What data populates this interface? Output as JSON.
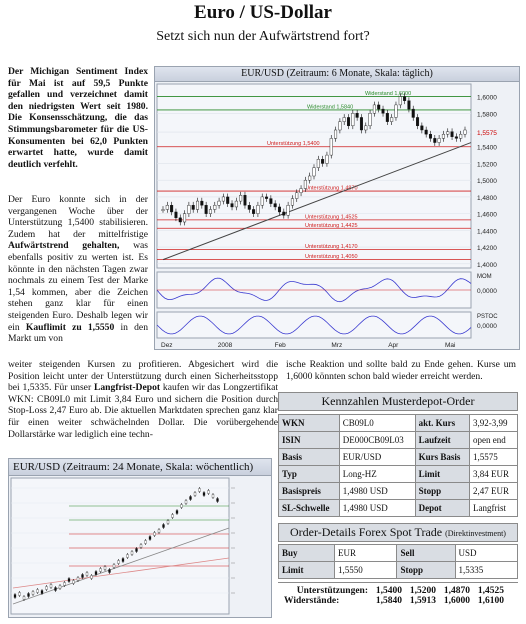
{
  "header": {
    "title": "Euro / US-Dollar",
    "subtitle": "Setzt sich nun der Aufwärtstrend fort?"
  },
  "intro": "Der Michigan Sentiment Index für Mai ist auf 59,5 Punkte gefallen und verzeichnet damit den niedrigsten Wert seit 1980. Die Konsensschätzung, die das Stimmungsbarometer für die US-Konsumenten bei 62,0 Punkten erwartet hatte, wurde damit deutlich verfehlt.",
  "body": {
    "p1_a": "Der Euro konnte sich in der vergangenen Woche über der Unterstützung 1,5400 stabilisieren. Zudem hat der mittelfristige ",
    "p1_b": "Aufwärtstrend gehalten,",
    "p1_c": " was ebenfalls positiv zu werten ist. Es könnte in den nächsten Tagen zwar nochmals zu einem Test der Marke 1,54 kommen, aber die Zeichen stehen ganz klar für einen steigenden Euro. Deshalb legen wir ein ",
    "p1_d": "Kauflimit zu 1,5550",
    "p1_e": " in den Markt um von",
    "p2_a": "weiter steigenden Kursen zu profitieren. Abgesichert wird die Position leicht unter der Unterstützung durch einen Sicherheitsstopp bei 1,5335. Für unser ",
    "p2_b": "Langfrist-Depot",
    "p2_c": " kaufen wir das Longzertifikat WKN: CB09L0 mit Limit 3,84 Euro und sichern die Position durch Stop-Loss 2,47 Euro ab. Die aktuellen Marktdaten sprechen ganz klar für einen weiter schwächelnden Dollar. Die vorübergehende Dollarstärke war lediglich eine techn-",
    "p3": "ische Reaktion und sollte bald zu Ende gehen. Kurse um 1,6000 könnten schon bald wieder erreicht werden."
  },
  "chart_main": {
    "header": "EUR/USD (Zeitraum: 6 Monate, Skala: täglich)",
    "x_labels": [
      "Dez",
      "2008",
      "Feb",
      "Mrz",
      "Apr",
      "Mai"
    ],
    "y_labels": [
      "1,6000",
      "1,5800",
      "1,5575",
      "1,5400",
      "1,5200",
      "1,5000",
      "1,4800",
      "1,4600",
      "1,4400",
      "1,4200",
      "1,4000"
    ],
    "lines": [
      {
        "label": "Widerstand 1,6000",
        "value": 1.6
      },
      {
        "label": "Widerstand 1,5840",
        "value": 1.584
      },
      {
        "label": "Unterstützung 1,5400",
        "value": 1.54
      },
      {
        "label": "Unterstützung 1,4870",
        "value": 1.487
      },
      {
        "label": "Unterstützung 1,4525",
        "value": 1.4525
      },
      {
        "label": "Unterstützung 1,4425",
        "value": 1.4425
      },
      {
        "label": "Unterstützung 1,4170",
        "value": 1.417
      },
      {
        "label": "Unterstützung 1,4050",
        "value": 1.405
      }
    ],
    "mom_label": "MOM",
    "mom_zero": "0,0000",
    "pstoc_label": "PSTOC",
    "pstoc_zero": "0,0000"
  },
  "chart_small": {
    "header": "EUR/USD (Zeitraum: 24 Monate, Skala: wöchentlich)"
  },
  "depot": {
    "title": "Kennzahlen Musterdepot-Order",
    "rows": [
      [
        "WKN",
        "CB09L0",
        "akt. Kurs",
        "3,92-3,99"
      ],
      [
        "ISIN",
        "DE000CB09L03",
        "Laufzeit",
        "open end"
      ],
      [
        "Basis",
        "EUR/USD",
        "Kurs Basis",
        "1,5575"
      ],
      [
        "Typ",
        "Long-HZ",
        "Limit",
        "3,84 EUR"
      ],
      [
        "Basispreis",
        "1,4980 USD",
        "Stopp",
        "2,47 EUR"
      ],
      [
        "SL-Schwelle",
        "1,4980 USD",
        "Depot",
        "Langfrist"
      ]
    ]
  },
  "order": {
    "title": "Order-Details Forex Spot Trade",
    "title_small": "(Direktinvestment)",
    "rows": [
      [
        "Buy",
        "EUR",
        "Sell",
        "USD"
      ],
      [
        "Limit",
        "1,5550",
        "Stopp",
        "1,5335"
      ]
    ]
  },
  "levels": {
    "support_label": "Unterstützungen:",
    "support": [
      "1,5400",
      "1,5200",
      "1,4870",
      "1,4525"
    ],
    "resist_label": "Widerstände:",
    "resist": [
      "1,5840",
      "1,5913",
      "1,6000",
      "1,6100"
    ]
  }
}
